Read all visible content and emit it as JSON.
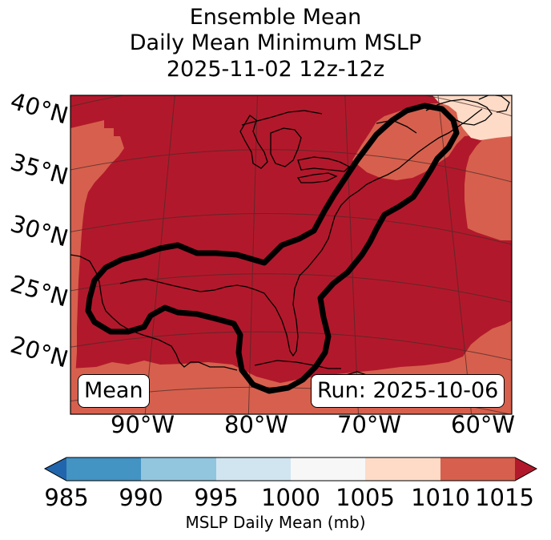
{
  "title": {
    "line1": "Ensemble Mean",
    "line2": "Daily Mean Minimum MSLP",
    "line3": "2025-11-02 12z-12z"
  },
  "map": {
    "lat_labels": [
      "40°N",
      "35°N",
      "30°N",
      "25°N",
      "20°N"
    ],
    "lon_labels": [
      "90°W",
      "80°W",
      "70°W",
      "60°W"
    ],
    "mean_label": "Mean",
    "run_label": "Run: 2025-10-06"
  },
  "colorbar": {
    "ticks": [
      "985",
      "990",
      "995",
      "1000",
      "1005",
      "1010",
      "1015"
    ],
    "title": "MSLP Daily Mean (mb)",
    "colors": {
      "under": "#2166ac",
      "b985_990": "#4393c3",
      "b990_995": "#92c5de",
      "b995_1000": "#d1e5f0",
      "b1000_1005": "#f7f7f7",
      "b1005_1010": "#fddbc7",
      "b1010_1015": "#d6604d",
      "over": "#b2182b"
    }
  }
}
